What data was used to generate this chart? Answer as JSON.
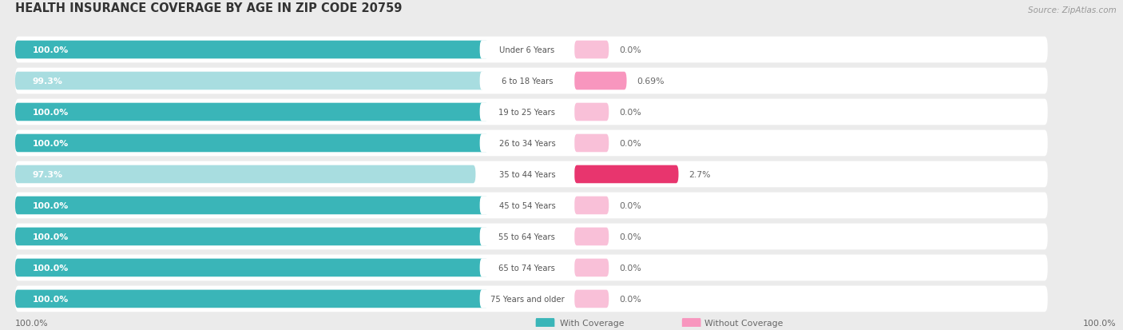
{
  "title": "HEALTH INSURANCE COVERAGE BY AGE IN ZIP CODE 20759",
  "source": "Source: ZipAtlas.com",
  "categories": [
    "Under 6 Years",
    "6 to 18 Years",
    "19 to 25 Years",
    "26 to 34 Years",
    "35 to 44 Years",
    "45 to 54 Years",
    "55 to 64 Years",
    "65 to 74 Years",
    "75 Years and older"
  ],
  "with_coverage": [
    100.0,
    99.3,
    100.0,
    100.0,
    97.3,
    100.0,
    100.0,
    100.0,
    100.0
  ],
  "without_coverage": [
    0.0,
    0.69,
    0.0,
    0.0,
    2.7,
    0.0,
    0.0,
    0.0,
    0.0
  ],
  "with_coverage_labels": [
    "100.0%",
    "99.3%",
    "100.0%",
    "100.0%",
    "97.3%",
    "100.0%",
    "100.0%",
    "100.0%",
    "100.0%"
  ],
  "without_coverage_labels": [
    "0.0%",
    "0.69%",
    "0.0%",
    "0.0%",
    "2.7%",
    "0.0%",
    "0.0%",
    "0.0%",
    "0.0%"
  ],
  "color_with_normal": "#3ab5b8",
  "color_with_light": "#a8dde0",
  "color_without_normal": "#f896be",
  "color_without_light": "#f9c0d8",
  "color_without_dark": "#e8356e",
  "row_bg_color": "#ffffff",
  "bg_color": "#ebebeb",
  "title_color": "#333333",
  "source_color": "#999999",
  "bottom_label": "100.0%",
  "legend_with": "With Coverage",
  "legend_without": "Without Coverage",
  "teal_label_color": "#ffffff",
  "cat_label_color": "#555555",
  "pct_label_color": "#666666"
}
